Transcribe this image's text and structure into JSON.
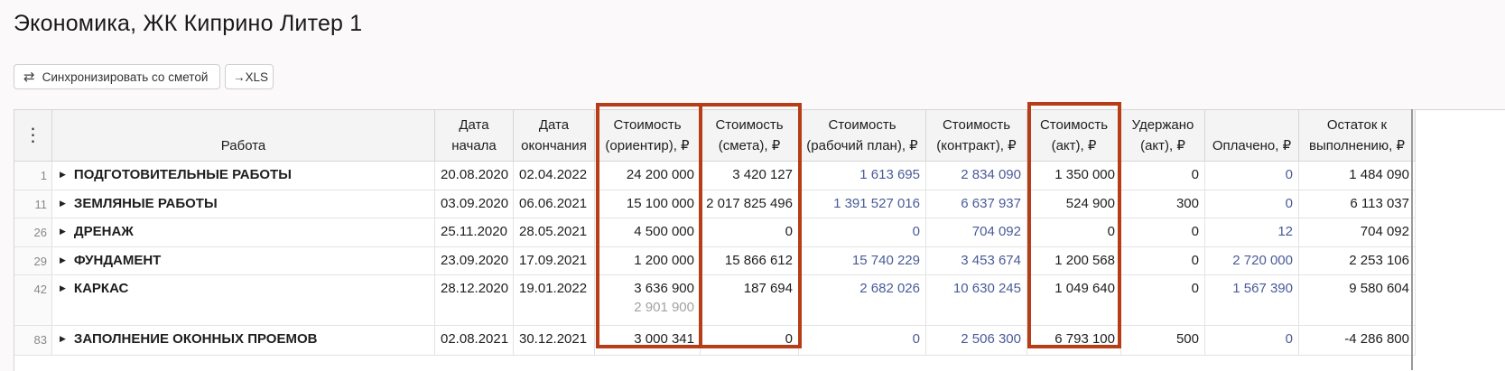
{
  "page_title": "Экономика, ЖК Киприно Литер 1",
  "toolbar": {
    "sync_label": "Синхронизировать со сметой",
    "xls_label": "→XLS"
  },
  "table": {
    "menu_glyph": "⋮",
    "headers": [
      "Работа",
      "Дата начала",
      "Дата окончания",
      "Стоимость (ориентир), ₽",
      "Стоимость (смета), ₽",
      "Стоимость (рабочий план), ₽",
      "Стоимость (контракт), ₽",
      "Стоимость (акт), ₽",
      "Удержано (акт), ₽",
      "Оплачено, ₽",
      "Остаток к выполнению, ₽"
    ],
    "rows": [
      {
        "num": "1",
        "work": "ПОДГОТОВИТЕЛЬНЫЕ РАБОТЫ",
        "start": "20.08.2020",
        "end": "02.04.2022",
        "orient": "24 200 000",
        "orient_sub": "",
        "smeta": "3 420 127",
        "plan": "1 613 695",
        "contract": "2 834 090",
        "act": "1 350 000",
        "held": "0",
        "paid": "0",
        "rest": "1 484 090"
      },
      {
        "num": "11",
        "work": "ЗЕМЛЯНЫЕ РАБОТЫ",
        "start": "03.09.2020",
        "end": "06.06.2021",
        "orient": "15 100 000",
        "orient_sub": "",
        "smeta": "2 017 825 496",
        "plan": "1 391 527 016",
        "contract": "6 637 937",
        "act": "524 900",
        "held": "300",
        "paid": "0",
        "rest": "6 113 037"
      },
      {
        "num": "26",
        "work": "ДРЕНАЖ",
        "start": "25.11.2020",
        "end": "28.05.2021",
        "orient": "4 500 000",
        "orient_sub": "",
        "smeta": "0",
        "plan": "0",
        "contract": "704 092",
        "act": "0",
        "held": "0",
        "paid": "12",
        "rest": "704 092"
      },
      {
        "num": "29",
        "work": "ФУНДАМЕНТ",
        "start": "23.09.2020",
        "end": "17.09.2021",
        "orient": "1 200 000",
        "orient_sub": "",
        "smeta": "15 866 612",
        "plan": "15 740 229",
        "contract": "3 453 674",
        "act": "1 200 568",
        "held": "0",
        "paid": "2 720 000",
        "rest": "2 253 106"
      },
      {
        "num": "42",
        "work": "КАРКАС",
        "start": "28.12.2020",
        "end": "19.01.2022",
        "orient": "3 636 900",
        "orient_sub": "2 901 900",
        "smeta": "187 694",
        "plan": "2 682 026",
        "contract": "10 630 245",
        "act": "1 049 640",
        "held": "0",
        "paid": "1 567 390",
        "rest": "9 580 604"
      },
      {
        "num": "83",
        "work": "ЗАПОЛНЕНИЕ ОКОННЫХ ПРОЕМОВ",
        "start": "02.08.2021",
        "end": "30.12.2021",
        "orient": "3 000 341",
        "orient_sub": "",
        "smeta": "0",
        "plan": "0",
        "contract": "2 506 300",
        "act": "6 793 100",
        "held": "500",
        "paid": "0",
        "rest": "-4 286 800"
      }
    ]
  },
  "colors": {
    "accent_link": "#4a5b98",
    "highlight": "#b63d17"
  }
}
